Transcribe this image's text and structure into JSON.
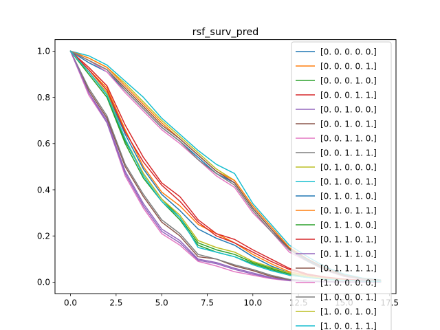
{
  "chart_data": {
    "type": "line",
    "title": "rsf_surv_pred",
    "xlabel": "",
    "ylabel": "",
    "xlim": [
      -0.85,
      17.85
    ],
    "ylim": [
      -0.05,
      1.05
    ],
    "xticks": [
      0.0,
      2.5,
      5.0,
      7.5,
      10.0,
      12.5,
      15.0,
      17.5
    ],
    "xtick_labels": [
      "0.0",
      "2.5",
      "5.0",
      "7.5",
      "10.0",
      "12.5",
      "15.0",
      "17.5"
    ],
    "yticks": [
      0.0,
      0.2,
      0.4,
      0.6,
      0.8,
      1.0
    ],
    "ytick_labels": [
      "0.0",
      "0.2",
      "0.4",
      "0.6",
      "0.8",
      "1.0"
    ],
    "grid": false,
    "legend_position": "right",
    "x": [
      0,
      1,
      2,
      3,
      4,
      5,
      6,
      7,
      8,
      9,
      10,
      11,
      12,
      13,
      14,
      15,
      16,
      17
    ],
    "series": [
      {
        "name": "[0. 0. 0. 0. 0.]",
        "color": "#1f77b4",
        "values": [
          1.0,
          0.91,
          0.82,
          0.64,
          0.49,
          0.38,
          0.31,
          0.23,
          0.19,
          0.16,
          0.11,
          0.07,
          0.04,
          0.025,
          0.015,
          0.01,
          0.006,
          0.004
        ]
      },
      {
        "name": "[0. 0. 0. 0. 1.]",
        "color": "#ff7f0e",
        "values": [
          1.0,
          0.92,
          0.84,
          0.66,
          0.5,
          0.39,
          0.33,
          0.25,
          0.21,
          0.17,
          0.12,
          0.08,
          0.045,
          0.03,
          0.02,
          0.012,
          0.007,
          0.004
        ]
      },
      {
        "name": "[0. 0. 0. 1. 0.]",
        "color": "#2ca02c",
        "values": [
          1.0,
          0.9,
          0.8,
          0.6,
          0.45,
          0.35,
          0.27,
          0.16,
          0.13,
          0.11,
          0.08,
          0.055,
          0.03,
          0.02,
          0.012,
          0.008,
          0.005,
          0.003
        ]
      },
      {
        "name": "[0. 0. 0. 1. 1.]",
        "color": "#d62728",
        "values": [
          1.0,
          0.93,
          0.85,
          0.68,
          0.54,
          0.43,
          0.37,
          0.27,
          0.21,
          0.185,
          0.14,
          0.1,
          0.06,
          0.035,
          0.022,
          0.014,
          0.008,
          0.005
        ]
      },
      {
        "name": "[0. 0. 1. 0. 0.]",
        "color": "#9467bd",
        "values": [
          1.0,
          0.82,
          0.7,
          0.48,
          0.34,
          0.23,
          0.18,
          0.1,
          0.085,
          0.06,
          0.04,
          0.02,
          0.008,
          0.004,
          0.002,
          0.001,
          0.0,
          0.0
        ]
      },
      {
        "name": "[0. 0. 1. 0. 1.]",
        "color": "#8c564b",
        "values": [
          1.0,
          0.83,
          0.71,
          0.5,
          0.37,
          0.26,
          0.2,
          0.11,
          0.1,
          0.07,
          0.05,
          0.025,
          0.01,
          0.005,
          0.003,
          0.001,
          0.0,
          0.0
        ]
      },
      {
        "name": "[0. 0. 1. 1. 0.]",
        "color": "#e377c2",
        "values": [
          1.0,
          0.81,
          0.69,
          0.46,
          0.32,
          0.21,
          0.16,
          0.09,
          0.07,
          0.045,
          0.03,
          0.015,
          0.006,
          0.003,
          0.001,
          0.0,
          0.0,
          0.0
        ]
      },
      {
        "name": "[0. 0. 1. 1. 1.]",
        "color": "#7f7f7f",
        "values": [
          1.0,
          0.84,
          0.72,
          0.51,
          0.38,
          0.27,
          0.21,
          0.12,
          0.1,
          0.075,
          0.055,
          0.03,
          0.012,
          0.006,
          0.003,
          0.001,
          0.0,
          0.0
        ]
      },
      {
        "name": "[0. 1. 0. 0. 0.]",
        "color": "#bcbd22",
        "values": [
          1.0,
          0.97,
          0.93,
          0.86,
          0.78,
          0.7,
          0.63,
          0.56,
          0.49,
          0.44,
          0.33,
          0.24,
          0.15,
          0.1,
          0.06,
          0.03,
          0.015,
          0.008
        ]
      },
      {
        "name": "[0. 1. 0. 0. 1.]",
        "color": "#17becf",
        "values": [
          1.0,
          0.98,
          0.94,
          0.87,
          0.8,
          0.71,
          0.64,
          0.57,
          0.51,
          0.47,
          0.34,
          0.25,
          0.16,
          0.11,
          0.065,
          0.035,
          0.018,
          0.01
        ]
      },
      {
        "name": "[0. 1. 0. 1. 0.]",
        "color": "#1f77b4",
        "values": [
          1.0,
          0.95,
          0.91,
          0.83,
          0.75,
          0.67,
          0.61,
          0.54,
          0.47,
          0.43,
          0.32,
          0.23,
          0.14,
          0.095,
          0.055,
          0.028,
          0.014,
          0.007
        ]
      },
      {
        "name": "[0. 1. 0. 1. 1.]",
        "color": "#ff7f0e",
        "values": [
          1.0,
          0.97,
          0.93,
          0.85,
          0.77,
          0.69,
          0.62,
          0.55,
          0.48,
          0.44,
          0.33,
          0.24,
          0.15,
          0.1,
          0.058,
          0.03,
          0.015,
          0.008
        ]
      },
      {
        "name": "[0. 1. 1. 0. 0.]",
        "color": "#2ca02c",
        "values": [
          1.0,
          0.91,
          0.81,
          0.61,
          0.47,
          0.36,
          0.28,
          0.17,
          0.14,
          0.12,
          0.085,
          0.06,
          0.035,
          0.022,
          0.013,
          0.008,
          0.005,
          0.003
        ]
      },
      {
        "name": "[0. 1. 1. 0. 1.]",
        "color": "#d62728",
        "values": [
          1.0,
          0.92,
          0.83,
          0.65,
          0.52,
          0.42,
          0.35,
          0.26,
          0.2,
          0.17,
          0.13,
          0.09,
          0.055,
          0.032,
          0.02,
          0.012,
          0.007,
          0.004
        ]
      },
      {
        "name": "[0. 1. 1. 1. 0.]",
        "color": "#9467bd",
        "values": [
          1.0,
          0.82,
          0.69,
          0.47,
          0.33,
          0.22,
          0.17,
          0.095,
          0.08,
          0.055,
          0.035,
          0.018,
          0.007,
          0.003,
          0.001,
          0.0,
          0.0,
          0.0
        ]
      },
      {
        "name": "[0. 1. 1. 1. 1.]",
        "color": "#8c564b",
        "values": [
          1.0,
          0.96,
          0.92,
          0.84,
          0.76,
          0.68,
          0.62,
          0.55,
          0.48,
          0.43,
          0.32,
          0.23,
          0.145,
          0.1,
          0.06,
          0.03,
          0.015,
          0.008
        ]
      },
      {
        "name": "[1. 0. 0. 0. 0.]",
        "color": "#e377c2",
        "values": [
          1.0,
          0.96,
          0.91,
          0.82,
          0.74,
          0.66,
          0.6,
          0.53,
          0.46,
          0.41,
          0.3,
          0.22,
          0.13,
          0.09,
          0.05,
          0.025,
          0.012,
          0.006
        ]
      },
      {
        "name": "[1. 0. 0. 0. 1.]",
        "color": "#7f7f7f",
        "values": [
          1.0,
          0.96,
          0.92,
          0.83,
          0.75,
          0.67,
          0.61,
          0.53,
          0.47,
          0.42,
          0.31,
          0.22,
          0.14,
          0.09,
          0.052,
          0.027,
          0.013,
          0.007
        ]
      },
      {
        "name": "[1. 0. 0. 1. 0.]",
        "color": "#bcbd22",
        "values": [
          1.0,
          0.91,
          0.82,
          0.62,
          0.47,
          0.36,
          0.29,
          0.18,
          0.15,
          0.13,
          0.09,
          0.065,
          0.04,
          0.025,
          0.015,
          0.009,
          0.005,
          0.003
        ]
      },
      {
        "name": "[1. 0. 0. 1. 1.]",
        "color": "#17becf",
        "values": [
          1.0,
          0.91,
          0.81,
          0.62,
          0.46,
          0.35,
          0.28,
          0.15,
          0.13,
          0.11,
          0.075,
          0.05,
          0.03,
          0.02,
          0.012,
          0.008,
          0.005,
          0.003
        ]
      }
    ]
  }
}
